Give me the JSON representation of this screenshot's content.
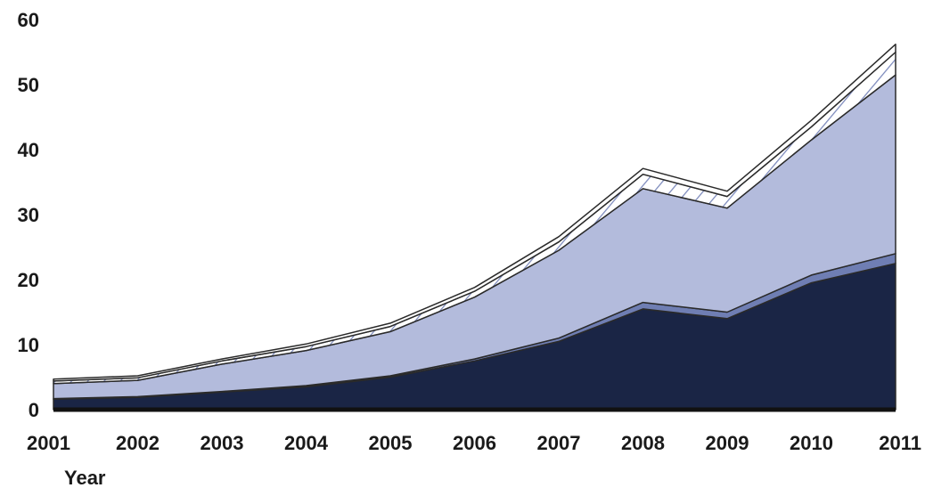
{
  "chart_data": {
    "type": "area",
    "stacked": true,
    "title": "",
    "xlabel": "Year",
    "ylabel": "",
    "ylim": [
      0,
      60
    ],
    "yticks": [
      0,
      10,
      20,
      30,
      40,
      50,
      60
    ],
    "grid": false,
    "legend": "none",
    "x": [
      "2001",
      "2002",
      "2003",
      "2004",
      "2005",
      "2006",
      "2007",
      "2008",
      "2009",
      "2010",
      "2011"
    ],
    "series": [
      {
        "color": "#1a2545",
        "values": [
          1.6,
          1.9,
          2.7,
          3.5,
          5.0,
          7.5,
          10.5,
          15.5,
          14.0,
          19.5,
          22.5
        ]
      },
      {
        "color": "#6f7eb3",
        "values": [
          0.1,
          0.1,
          0.1,
          0.2,
          0.2,
          0.3,
          0.5,
          1.0,
          1.0,
          1.2,
          1.5
        ]
      },
      {
        "color": "#b3bbdc",
        "values": [
          2.3,
          2.5,
          4.2,
          5.4,
          6.8,
          9.5,
          13.5,
          17.5,
          16.0,
          20.8,
          27.5
        ]
      },
      {
        "color": "#ffffff",
        "pattern": "hatch",
        "values": [
          0.4,
          0.4,
          0.5,
          0.6,
          0.8,
          0.9,
          1.3,
          2.2,
          1.8,
          2.0,
          3.5
        ]
      },
      {
        "color": "#ffffff",
        "values": [
          0.3,
          0.3,
          0.3,
          0.4,
          0.5,
          0.6,
          0.8,
          0.9,
          0.8,
          1.0,
          1.2
        ]
      }
    ]
  }
}
